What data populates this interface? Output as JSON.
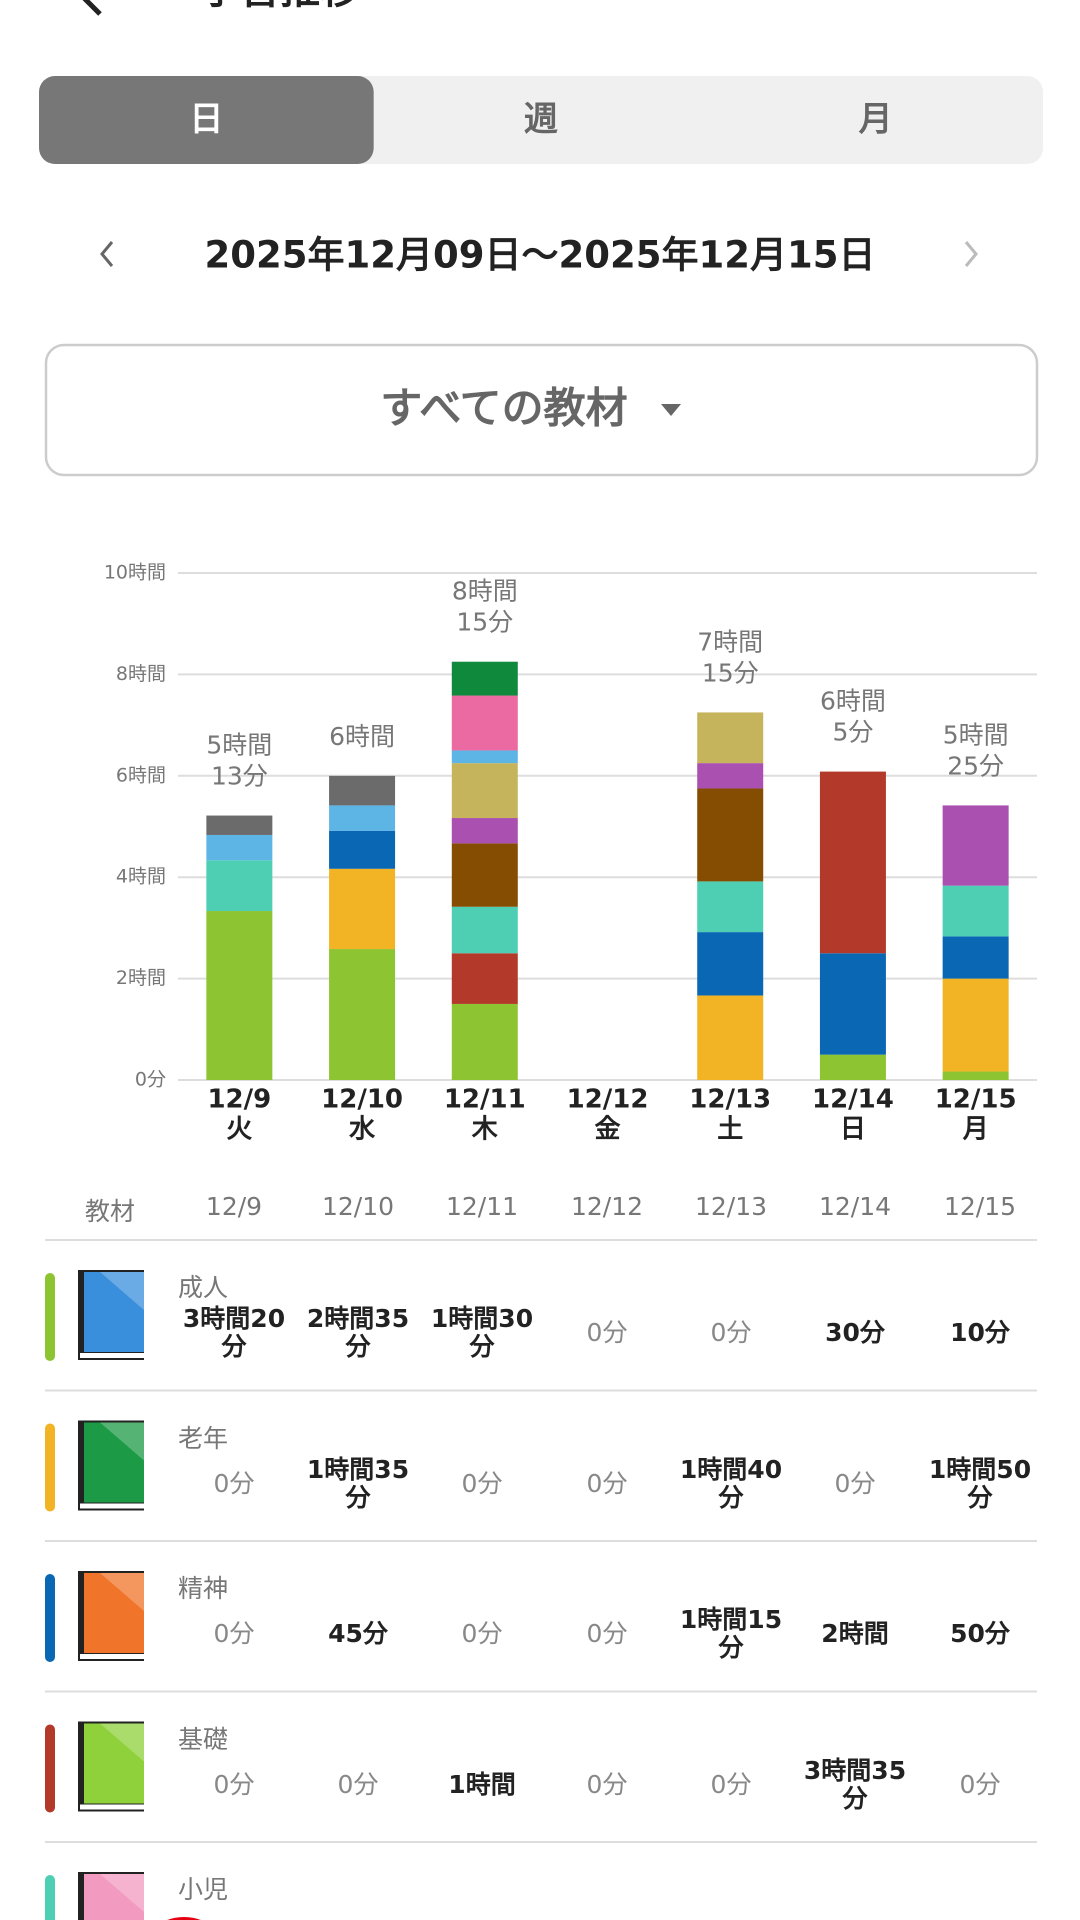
{
  "header": {
    "title": "学習推移"
  },
  "tabs": [
    "日",
    "週",
    "月"
  ],
  "selected_tab": 0,
  "date_range": "2025年12月09日〜2025年12月15日",
  "filter": "すべての教材",
  "chart_data": {
    "type": "stacked_bar",
    "categories": [
      "12/9",
      "12/10",
      "12/11",
      "12/12",
      "12/13",
      "12/14",
      "12/15"
    ],
    "weekdays": [
      "火",
      "水",
      "木",
      "金",
      "土",
      "日",
      "月"
    ],
    "ylim": [
      0,
      10
    ],
    "yticks": [
      {
        "value": 0,
        "label": "0分"
      },
      {
        "value": 2,
        "label": "2時間"
      },
      {
        "value": 4,
        "label": "4時間"
      },
      {
        "value": 6,
        "label": "6時間"
      },
      {
        "value": 8,
        "label": "8時間"
      },
      {
        "value": 10,
        "label": "10時間"
      }
    ],
    "grid": true,
    "total_labels": [
      [
        "5時間",
        "13分"
      ],
      [
        "6時間"
      ],
      [
        "8時間",
        "15分"
      ],
      null,
      [
        "7時間",
        "15分"
      ],
      [
        "6時間",
        "5分"
      ],
      [
        "5時間",
        "25分"
      ]
    ],
    "series": [
      {
        "name": "成人",
        "color": "#8dc431",
        "values": [
          3.333,
          2.583,
          1.5,
          0,
          0,
          0.5,
          0.167
        ]
      },
      {
        "name": "老年",
        "color": "#f2b424",
        "values": [
          0,
          1.583,
          0,
          0,
          1.667,
          0,
          1.833
        ]
      },
      {
        "name": "精神",
        "color": "#0a67b4",
        "values": [
          0,
          0.75,
          0,
          0,
          1.25,
          2,
          0.833
        ]
      },
      {
        "name": "基礎",
        "color": "#b33a2a",
        "values": [
          0,
          0,
          1,
          0,
          0,
          3.583,
          0
        ]
      },
      {
        "name": "小児",
        "color": "#4ecfb3",
        "values": [
          1,
          0,
          0.917,
          0,
          1,
          0,
          1
        ]
      },
      {
        "color": "#844d02",
        "values": [
          0,
          0,
          1.25,
          0,
          1.833,
          0,
          0
        ]
      },
      {
        "color": "#aa50b0",
        "values": [
          0,
          0,
          0.5,
          0,
          0.5,
          0,
          1.583
        ]
      },
      {
        "color": "#c6b45c",
        "values": [
          0,
          0,
          1.083,
          0,
          1,
          0,
          0
        ]
      },
      {
        "color": "#5db5e6",
        "values": [
          0.5,
          0.5,
          0.25,
          0,
          0,
          0,
          0
        ]
      },
      {
        "color": "#ea6aa1",
        "values": [
          0,
          0,
          1.083,
          0,
          0,
          0,
          0
        ]
      },
      {
        "color": "#6b6b6b",
        "values": [
          0.383,
          0.583,
          0,
          0,
          0,
          0,
          0
        ]
      },
      {
        "color": "#0f8a3c",
        "values": [
          0,
          0,
          0.667,
          0,
          0,
          0,
          0
        ]
      }
    ]
  },
  "table": {
    "headers": [
      "教材",
      "12/9",
      "12/10",
      "12/11",
      "12/12",
      "12/13",
      "12/14",
      "12/15"
    ],
    "rows": [
      {
        "name": "成人",
        "color": "#8dc431",
        "icon": "#3a8fdc",
        "cells": [
          "3時間20分",
          "2時間35分",
          "1時間30分",
          "0分",
          "0分",
          "30分",
          "10分"
        ]
      },
      {
        "name": "老年",
        "color": "#f2b424",
        "icon": "#1c9a45",
        "cells": [
          "0分",
          "1時間35分",
          "0分",
          "0分",
          "1時間40分",
          "0分",
          "1時間50分"
        ]
      },
      {
        "name": "精神",
        "color": "#0a67b4",
        "icon": "#f0742a",
        "cells": [
          "0分",
          "45分",
          "0分",
          "0分",
          "1時間15分",
          "2時間",
          "50分"
        ]
      },
      {
        "name": "基礎",
        "color": "#b33a2a",
        "icon": "#8ed13a",
        "cells": [
          "0分",
          "0分",
          "1時間",
          "0分",
          "0分",
          "3時間35分",
          "0分"
        ]
      },
      {
        "name": "小児",
        "color": "#4ecfb3",
        "icon": "#f29ac0"
      }
    ]
  }
}
